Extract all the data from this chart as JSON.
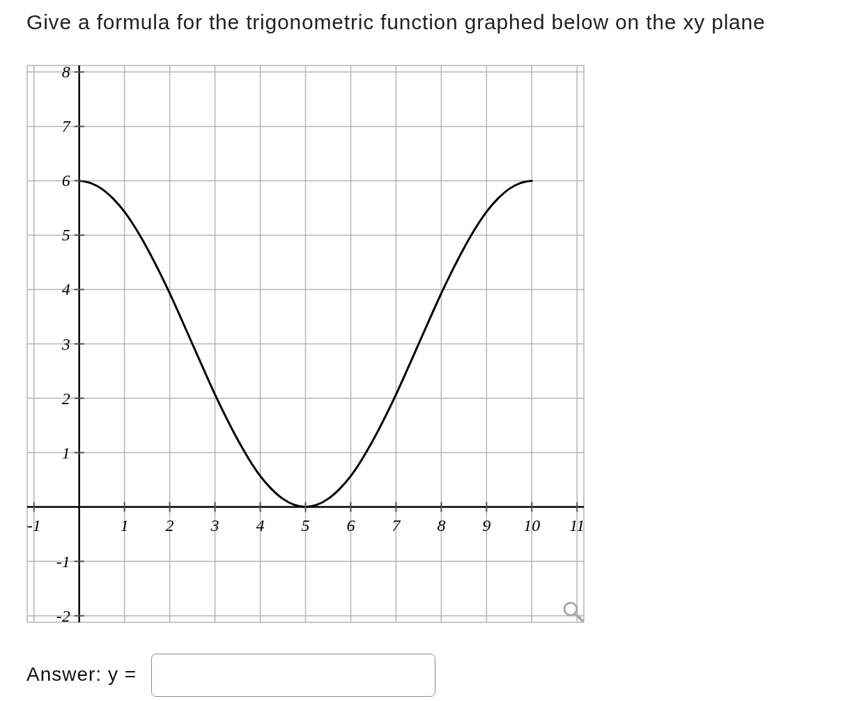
{
  "chart_data": {
    "type": "line",
    "title": "Give a formula for the trigonometric function graphed below on the xy plane",
    "annotations": [
      "Answer: y ="
    ],
    "x": [
      0,
      0.25,
      0.5,
      0.75,
      1,
      1.25,
      1.5,
      1.75,
      2,
      2.25,
      2.5,
      2.75,
      3,
      3.25,
      3.5,
      3.75,
      4,
      4.25,
      4.5,
      4.75,
      5,
      5.25,
      5.5,
      5.75,
      6,
      6.25,
      6.5,
      6.75,
      7,
      7.25,
      7.5,
      7.75,
      8,
      8.25,
      8.5,
      8.75,
      9,
      9.25,
      9.5,
      9.75,
      10
    ],
    "values": [
      6,
      5.96,
      5.85,
      5.67,
      5.43,
      5.12,
      4.76,
      4.36,
      3.93,
      3.47,
      3,
      2.53,
      2.07,
      1.64,
      1.24,
      0.88,
      0.57,
      0.33,
      0.15,
      0.04,
      0,
      0.04,
      0.15,
      0.33,
      0.57,
      0.88,
      1.24,
      1.64,
      2.07,
      2.53,
      3,
      3.47,
      3.93,
      4.36,
      4.76,
      5.12,
      5.43,
      5.67,
      5.85,
      5.96,
      6
    ],
    "color": "#000000",
    "xlim": [
      -1.15,
      11.15
    ],
    "ylim": [
      -2.12,
      8.12
    ],
    "xticks": [
      -1,
      1,
      2,
      3,
      4,
      5,
      6,
      7,
      8,
      9,
      10,
      11
    ],
    "yticks": [
      -2,
      -1,
      1,
      2,
      3,
      4,
      5,
      6,
      7,
      8
    ],
    "grid": true,
    "marker": "none",
    "line_style": "solid"
  }
}
